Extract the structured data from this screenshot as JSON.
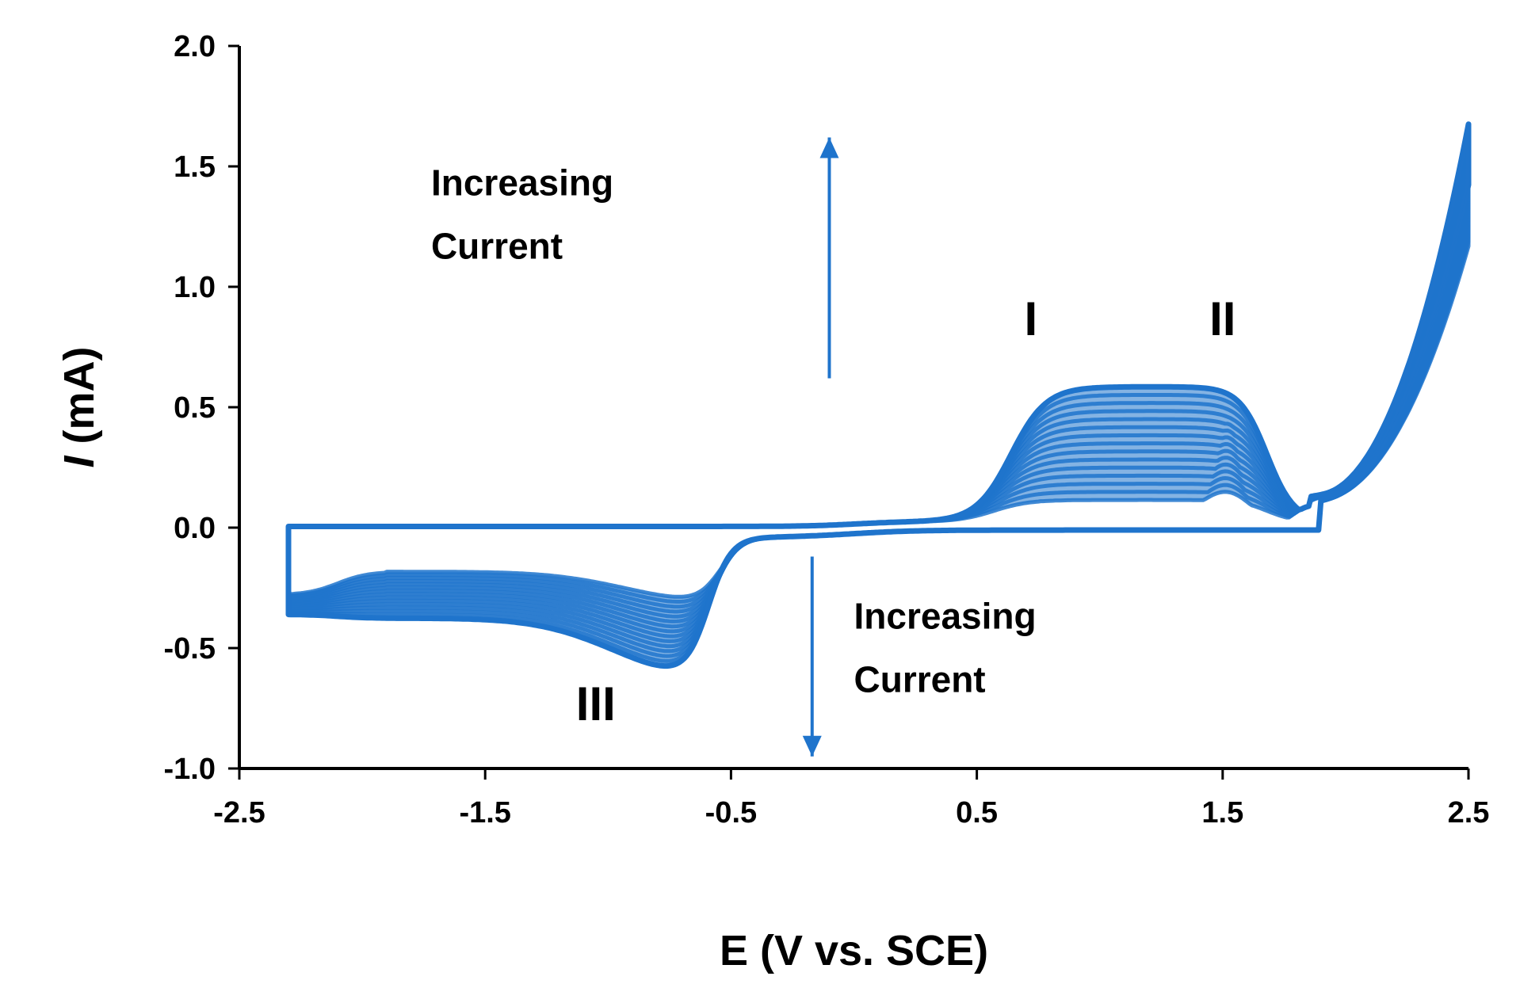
{
  "chart_data": {
    "type": "line",
    "title": "",
    "xlabel": "E (V vs. SCE)",
    "ylabel_italic": "I",
    "ylabel_rest": " (mA)",
    "xlim": [
      -2.5,
      2.5
    ],
    "ylim": [
      -1.0,
      2.0
    ],
    "x_ticks": [
      -2.5,
      -1.5,
      -0.5,
      0.5,
      1.5,
      2.5
    ],
    "x_tick_labels": [
      "-2.5",
      "-1.5",
      "-0.5",
      "0.5",
      "1.5",
      "2.5"
    ],
    "y_ticks": [
      -1.0,
      -0.5,
      0.0,
      0.5,
      1.0,
      1.5,
      2.0
    ],
    "y_tick_labels": [
      "-1.0",
      "-0.5",
      "0.0",
      "0.5",
      "1.0",
      "1.5",
      "2.0"
    ],
    "series_color": "#1f74cc",
    "cycle_count": 15,
    "first_cycle": {
      "oxidation_peak_I": [
        0.75,
        0.1
      ],
      "oxidation_peak_II": [
        1.52,
        0.16
      ],
      "reduction_peak_III": [
        -0.6,
        -0.27
      ],
      "switch_low": [
        -2.3,
        -0.22
      ],
      "switch_high": [
        2.5,
        1.35
      ]
    },
    "last_cycle": {
      "oxidation_peak_I": [
        0.82,
        0.58
      ],
      "oxidation_peak_II": [
        1.53,
        0.59
      ],
      "reduction_peak_III": [
        -0.65,
        -0.58
      ],
      "switch_low": [
        -2.3,
        -0.3
      ],
      "switch_high": [
        2.5,
        1.65
      ]
    },
    "peak_labels": [
      {
        "text": "I",
        "x": 0.72,
        "y": 0.8
      },
      {
        "text": "II",
        "x": 1.5,
        "y": 0.8
      },
      {
        "text": "III",
        "x": -1.05,
        "y": -0.8
      }
    ],
    "arrows": [
      {
        "direction": "up",
        "x": -0.1,
        "from": 0.62,
        "to": 1.62
      },
      {
        "direction": "down",
        "x": -0.17,
        "from": -0.12,
        "to": -0.95
      }
    ],
    "annotations": [
      {
        "line1": "Increasing",
        "line2": "Current",
        "x": -1.72,
        "y": 1.38
      },
      {
        "line1": "Increasing",
        "line2": "Current",
        "x": 0.0,
        "y": -0.42
      }
    ]
  }
}
